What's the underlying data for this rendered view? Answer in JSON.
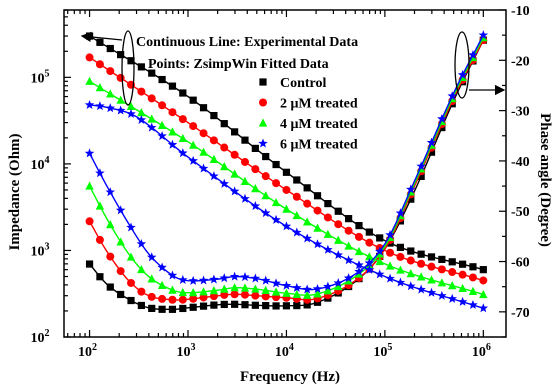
{
  "chart_data": {
    "type": "line",
    "annotations": [
      "Continuous Line: Experimental Data",
      "Points: ZsimpWin Fitted Data"
    ],
    "xlabel": "Frequency (Hz)",
    "ylabel_left": "Impedance (Ohm)",
    "ylabel_right": "Phase angle (Degree)",
    "x_scale": "log",
    "y_left_scale": "log",
    "xlim": [
      55,
      1700000
    ],
    "ylim_left": [
      100,
      600000
    ],
    "ylim_right": [
      -75,
      -10
    ],
    "x_ticks": [
      {
        "value": 100,
        "base": "10",
        "exp": "2"
      },
      {
        "value": 1000,
        "base": "10",
        "exp": "3"
      },
      {
        "value": 10000,
        "base": "10",
        "exp": "4"
      },
      {
        "value": 100000,
        "base": "10",
        "exp": "5"
      },
      {
        "value": 1000000,
        "base": "10",
        "exp": "6"
      }
    ],
    "y_left_ticks": [
      {
        "value": 100,
        "base": "10",
        "exp": "2"
      },
      {
        "value": 1000,
        "base": "10",
        "exp": "3"
      },
      {
        "value": 10000,
        "base": "10",
        "exp": "4"
      },
      {
        "value": 100000,
        "base": "10",
        "exp": "5"
      }
    ],
    "y_right_ticks": [
      "-10",
      "-20",
      "-30",
      "-40",
      "-50",
      "-60",
      "-70"
    ],
    "legend_position": "top-right",
    "series": [
      {
        "name": "Control",
        "color": "#000000",
        "marker": "square",
        "impedance": {
          "x": [
            100,
            1000,
            10000,
            100000,
            1000000
          ],
          "y": [
            300000,
            60000,
            8000,
            1300,
            600
          ]
        },
        "phase": {
          "x": [
            100,
            150,
            250,
            400,
            700,
            1000,
            2000,
            3000,
            5000,
            10000,
            20000,
            50000,
            100000,
            200000,
            500000,
            1000000
          ],
          "y": [
            -60.5,
            -64.5,
            -67.5,
            -69.2,
            -69.5,
            -69.2,
            -68.6,
            -68.5,
            -68.7,
            -68.8,
            -68.2,
            -64,
            -57.5,
            -46,
            -28,
            -16
          ]
        }
      },
      {
        "name": "2 μM treated",
        "color": "#ff0000",
        "marker": "circle",
        "impedance": {
          "x": [
            100,
            1000,
            10000,
            100000,
            1000000
          ],
          "y": [
            170000,
            30000,
            5000,
            1000,
            450
          ]
        },
        "phase": {
          "x": [
            100,
            150,
            250,
            400,
            700,
            1000,
            2000,
            3000,
            5000,
            10000,
            20000,
            50000,
            100000,
            200000,
            500000,
            1000000
          ],
          "y": [
            -52,
            -58,
            -63.8,
            -66.8,
            -67.6,
            -67.5,
            -66.8,
            -66.5,
            -66.8,
            -67.2,
            -67.4,
            -63.8,
            -57.5,
            -45,
            -27.5,
            -16
          ]
        }
      },
      {
        "name": "4 μM treated",
        "color": "#00ff00",
        "marker": "triangle",
        "impedance": {
          "x": [
            100,
            1000,
            10000,
            100000,
            1000000
          ],
          "y": [
            90000,
            18000,
            3000,
            700,
            310
          ]
        },
        "phase": {
          "x": [
            100,
            150,
            250,
            400,
            700,
            1000,
            2000,
            3000,
            5000,
            10000,
            20000,
            50000,
            100000,
            200000,
            500000,
            1000000
          ],
          "y": [
            -45,
            -51.5,
            -58.5,
            -63,
            -65.7,
            -66.2,
            -65.7,
            -65.2,
            -65.5,
            -66.3,
            -66.5,
            -63,
            -57,
            -44.5,
            -27,
            -15.5
          ]
        }
      },
      {
        "name": "6 μM treated",
        "color": "#0000ff",
        "marker": "star",
        "impedance": {
          "x": [
            100,
            150,
            300,
            1000,
            10000,
            100000,
            1000000
          ],
          "y": [
            48000,
            45000,
            35000,
            12000,
            1900,
            500,
            215
          ]
        },
        "phase": {
          "x": [
            100,
            150,
            250,
            400,
            700,
            1000,
            2000,
            3000,
            5000,
            10000,
            20000,
            50000,
            100000,
            200000,
            500000,
            1000000
          ],
          "y": [
            -38.5,
            -45,
            -52.5,
            -58.5,
            -62.8,
            -63.8,
            -63.5,
            -63,
            -63.4,
            -64.8,
            -65.5,
            -62.5,
            -56.5,
            -44,
            -26.5,
            -15
          ]
        }
      }
    ]
  }
}
